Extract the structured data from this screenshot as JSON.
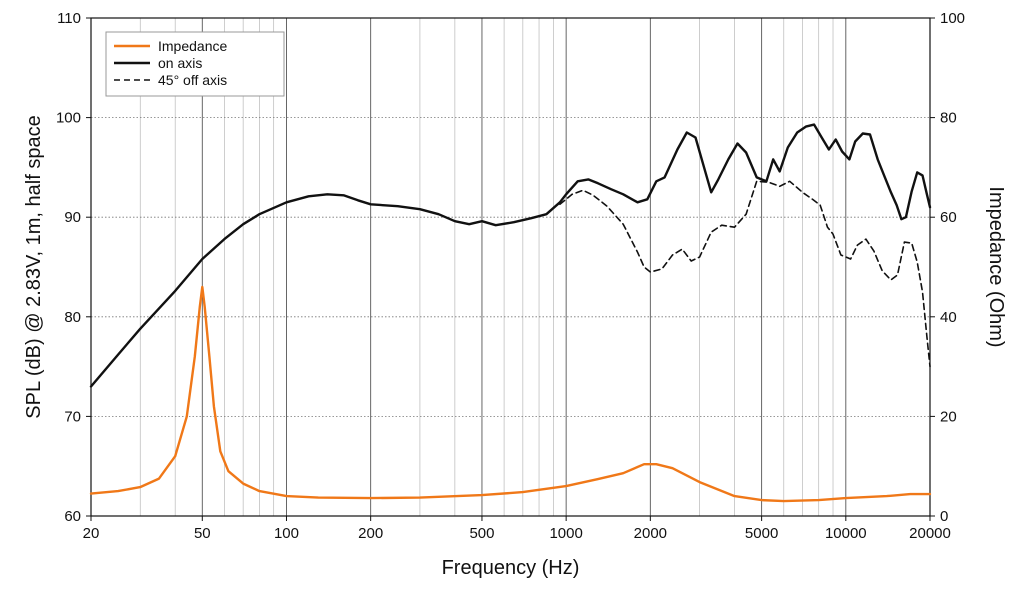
{
  "chart_data": {
    "type": "line",
    "xlabel": "Frequency (Hz)",
    "ylabel_left": "SPL (dB) @ 2.83V, 1m, half space",
    "ylabel_right": "Impedance (Ohm)",
    "x_scale": "log",
    "xlim": [
      20,
      20000
    ],
    "ylim_left": [
      60,
      110
    ],
    "ylim_right": [
      0,
      100
    ],
    "x_ticks": [
      20,
      50,
      100,
      200,
      500,
      1000,
      2000,
      5000,
      10000,
      20000
    ],
    "x_tick_labels": [
      "20",
      "50",
      "100",
      "200",
      "500",
      "1000",
      "2000",
      "5000",
      "10000",
      "20000"
    ],
    "y_left_ticks": [
      60,
      70,
      80,
      90,
      100,
      110
    ],
    "y_left_tick_labels": [
      "60",
      "70",
      "80",
      "90",
      "100",
      "110"
    ],
    "y_right_ticks": [
      0,
      20,
      40,
      60,
      80,
      100
    ],
    "y_right_tick_labels": [
      "0",
      "20",
      "40",
      "60",
      "80",
      "100"
    ],
    "grid": true,
    "legend_position": "top-left",
    "series": [
      {
        "name": "Impedance",
        "axis": "right",
        "color": "#f07818",
        "style": "solid",
        "points": [
          [
            20,
            4.5
          ],
          [
            25,
            5
          ],
          [
            30,
            5.8
          ],
          [
            35,
            7.5
          ],
          [
            40,
            12
          ],
          [
            44,
            20
          ],
          [
            47,
            32
          ],
          [
            49,
            42
          ],
          [
            50,
            46
          ],
          [
            51,
            42
          ],
          [
            53,
            32
          ],
          [
            55,
            22
          ],
          [
            58,
            13
          ],
          [
            62,
            9
          ],
          [
            70,
            6.5
          ],
          [
            80,
            5
          ],
          [
            100,
            4
          ],
          [
            130,
            3.7
          ],
          [
            200,
            3.6
          ],
          [
            300,
            3.7
          ],
          [
            500,
            4.2
          ],
          [
            700,
            4.8
          ],
          [
            1000,
            6
          ],
          [
            1300,
            7.4
          ],
          [
            1600,
            8.6
          ],
          [
            1900,
            10.4
          ],
          [
            2100,
            10.4
          ],
          [
            2400,
            9.6
          ],
          [
            3000,
            6.8
          ],
          [
            4000,
            4
          ],
          [
            5000,
            3.2
          ],
          [
            6000,
            3
          ],
          [
            8000,
            3.2
          ],
          [
            10000,
            3.6
          ],
          [
            14000,
            4
          ],
          [
            17000,
            4.4
          ],
          [
            20000,
            4.4
          ]
        ]
      },
      {
        "name": "on axis",
        "axis": "left",
        "color": "#111111",
        "style": "solid",
        "points": [
          [
            20,
            73
          ],
          [
            25,
            76.2
          ],
          [
            30,
            78.8
          ],
          [
            40,
            82.6
          ],
          [
            50,
            85.8
          ],
          [
            60,
            87.8
          ],
          [
            70,
            89.3
          ],
          [
            80,
            90.3
          ],
          [
            100,
            91.5
          ],
          [
            120,
            92.1
          ],
          [
            140,
            92.3
          ],
          [
            160,
            92.2
          ],
          [
            180,
            91.7
          ],
          [
            200,
            91.3
          ],
          [
            250,
            91.1
          ],
          [
            300,
            90.8
          ],
          [
            350,
            90.3
          ],
          [
            400,
            89.6
          ],
          [
            450,
            89.3
          ],
          [
            500,
            89.6
          ],
          [
            560,
            89.2
          ],
          [
            650,
            89.5
          ],
          [
            750,
            89.9
          ],
          [
            850,
            90.3
          ],
          [
            950,
            91.5
          ],
          [
            1000,
            92.3
          ],
          [
            1100,
            93.6
          ],
          [
            1200,
            93.8
          ],
          [
            1300,
            93.4
          ],
          [
            1450,
            92.8
          ],
          [
            1600,
            92.3
          ],
          [
            1800,
            91.5
          ],
          [
            1950,
            91.8
          ],
          [
            2100,
            93.6
          ],
          [
            2250,
            94
          ],
          [
            2500,
            96.8
          ],
          [
            2700,
            98.5
          ],
          [
            2900,
            98
          ],
          [
            3150,
            94.5
          ],
          [
            3300,
            92.5
          ],
          [
            3500,
            93.8
          ],
          [
            3800,
            95.8
          ],
          [
            4100,
            97.4
          ],
          [
            4400,
            96.5
          ],
          [
            4800,
            94
          ],
          [
            5200,
            93.6
          ],
          [
            5500,
            95.8
          ],
          [
            5800,
            94.6
          ],
          [
            6200,
            97
          ],
          [
            6700,
            98.5
          ],
          [
            7200,
            99.1
          ],
          [
            7700,
            99.3
          ],
          [
            8200,
            98
          ],
          [
            8700,
            96.8
          ],
          [
            9200,
            97.8
          ],
          [
            9700,
            96.6
          ],
          [
            10300,
            95.8
          ],
          [
            10800,
            97.6
          ],
          [
            11500,
            98.4
          ],
          [
            12200,
            98.3
          ],
          [
            13000,
            95.8
          ],
          [
            13800,
            94
          ],
          [
            14500,
            92.5
          ],
          [
            15200,
            91.2
          ],
          [
            15800,
            89.8
          ],
          [
            16400,
            90
          ],
          [
            17200,
            92.6
          ],
          [
            18000,
            94.5
          ],
          [
            18800,
            94.2
          ],
          [
            19500,
            92.3
          ],
          [
            20000,
            91
          ]
        ]
      },
      {
        "name": "45° off axis",
        "axis": "left",
        "color": "#111111",
        "style": "dashed",
        "points": [
          [
            950,
            91.3
          ],
          [
            1050,
            92.3
          ],
          [
            1150,
            92.7
          ],
          [
            1250,
            92.2
          ],
          [
            1400,
            91.1
          ],
          [
            1600,
            89.3
          ],
          [
            1800,
            86.5
          ],
          [
            1900,
            85
          ],
          [
            2000,
            84.5
          ],
          [
            2200,
            84.8
          ],
          [
            2400,
            86.2
          ],
          [
            2600,
            86.8
          ],
          [
            2800,
            85.6
          ],
          [
            3000,
            86
          ],
          [
            3300,
            88.5
          ],
          [
            3600,
            89.2
          ],
          [
            4000,
            89
          ],
          [
            4400,
            90.3
          ],
          [
            4800,
            93.6
          ],
          [
            5300,
            93.5
          ],
          [
            5800,
            93.1
          ],
          [
            6300,
            93.6
          ],
          [
            7000,
            92.5
          ],
          [
            7600,
            91.8
          ],
          [
            8100,
            91.2
          ],
          [
            8600,
            89
          ],
          [
            9000,
            88.3
          ],
          [
            9600,
            86.2
          ],
          [
            10400,
            85.8
          ],
          [
            11000,
            87.2
          ],
          [
            11800,
            87.8
          ],
          [
            12600,
            86.6
          ],
          [
            13500,
            84.6
          ],
          [
            14500,
            83.7
          ],
          [
            15300,
            84.2
          ],
          [
            16200,
            87.5
          ],
          [
            17200,
            87.4
          ],
          [
            18000,
            85.5
          ],
          [
            18800,
            82.5
          ],
          [
            19500,
            78
          ],
          [
            20000,
            75
          ]
        ]
      }
    ]
  }
}
